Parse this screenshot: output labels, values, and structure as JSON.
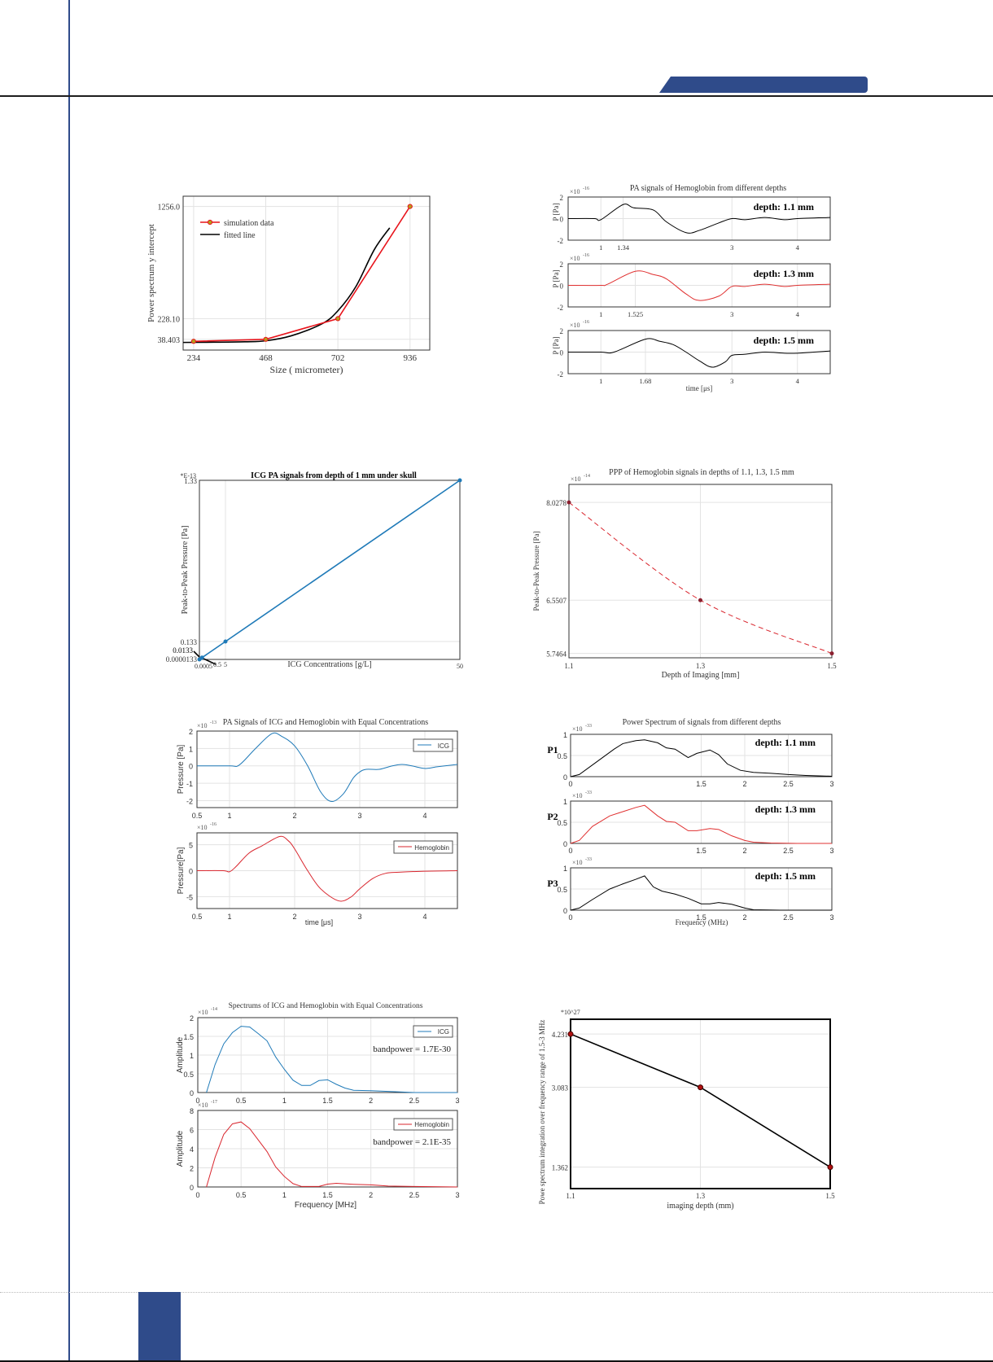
{
  "page": {
    "accent_color": "#2f4b8a",
    "rule_color": "#1e1e1e"
  },
  "chart_data": [
    {
      "id": "fig1",
      "type": "line",
      "title": "",
      "xlabel": "Size ( micrometer)",
      "ylabel": "Power spectrum y intercept",
      "x_ticks": [
        "234",
        "468",
        "702",
        "936"
      ],
      "y_ticks": [
        "38.403",
        "228.10",
        "1256.0"
      ],
      "legend": [
        "simulation data",
        "fitted line"
      ],
      "series": [
        {
          "name": "simulation data",
          "color": "#e8141c",
          "x": [
            234,
            468,
            702,
            936
          ],
          "y": [
            20,
            38.403,
            228.1,
            1256.0
          ]
        },
        {
          "name": "fitted line",
          "color": "#000000",
          "x": [
            200,
            300,
            400,
            468,
            550,
            650,
            702,
            760,
            820,
            870
          ],
          "y": [
            10,
            12,
            16,
            25,
            70,
            180,
            300,
            520,
            860,
            1060
          ]
        }
      ],
      "xlim": [
        200,
        1000
      ],
      "ylim": [
        -60,
        1350
      ]
    },
    {
      "id": "fig2",
      "type": "line",
      "title": "PA signals of Hemoglobin from different depths",
      "xlabel": "time [μs]",
      "ylabel": "P [Pa]",
      "y_exponent": "×10",
      "y_exponent_power": "-16",
      "panels": [
        {
          "label": "depth: 1.1 mm",
          "color": "#000000",
          "x_ticks": [
            "1",
            "1.34",
            "3",
            "4"
          ],
          "y_ticks": [
            "2",
            "0",
            "-2"
          ],
          "x": [
            0.5,
            0.9,
            1.0,
            1.34,
            1.5,
            1.8,
            2.0,
            2.3,
            2.5,
            2.8,
            3.0,
            3.2,
            3.5,
            3.8,
            4.0,
            4.5
          ],
          "y": [
            0,
            0,
            -0.1,
            1.3,
            1.0,
            0.8,
            -0.3,
            -1.3,
            -1.1,
            -0.4,
            0,
            -0.1,
            0.1,
            -0.1,
            0,
            0.1
          ]
        },
        {
          "label": "depth: 1.3 mm",
          "color": "#e03030",
          "x_ticks": [
            "1",
            "1.525",
            "3",
            "4"
          ],
          "y_ticks": [
            "2",
            "0",
            "-2"
          ],
          "x": [
            0.5,
            1.0,
            1.1,
            1.525,
            1.8,
            2.0,
            2.3,
            2.5,
            2.8,
            3.0,
            3.2,
            3.5,
            3.8,
            4.0,
            4.5
          ],
          "y": [
            0,
            0,
            0.1,
            1.3,
            1.0,
            0.6,
            -0.8,
            -1.4,
            -1.0,
            -0.1,
            -0.1,
            0.1,
            -0.1,
            0,
            0.1
          ]
        },
        {
          "label": "depth: 1.5 mm",
          "color": "#000000",
          "x_ticks": [
            "1",
            "1.68",
            "3",
            "4"
          ],
          "y_ticks": [
            "2",
            "0",
            "-2"
          ],
          "x": [
            0.5,
            1.0,
            1.2,
            1.68,
            1.9,
            2.1,
            2.3,
            2.5,
            2.7,
            2.9,
            3.0,
            3.2,
            3.5,
            3.8,
            4.0,
            4.5
          ],
          "y": [
            0,
            0,
            0,
            1.2,
            1.0,
            0.7,
            0,
            -0.8,
            -1.4,
            -0.9,
            -0.3,
            -0.2,
            0,
            -0.1,
            -0.1,
            0.1
          ]
        }
      ],
      "xlim": [
        0.5,
        4.5
      ],
      "ylim": [
        -2,
        2
      ]
    },
    {
      "id": "fig3",
      "type": "line",
      "title": "ICG PA signals from depth of 1 mm under skull",
      "xlabel": "ICG Concentrations [g/L]",
      "ylabel": "Peak-to-Peak Pressure [Pa]",
      "y_exponent": "*E-13",
      "x_ticks": [
        "0.0005",
        "0.5",
        "5",
        "50"
      ],
      "y_ticks": [
        "0.0000133",
        "0.0133",
        "0.133",
        "1.33"
      ],
      "annotations": [
        "0.0133",
        "0.5"
      ],
      "series": [
        {
          "name": "ICG",
          "color": "#1f7ab8",
          "x": [
            0.0005,
            0.5,
            5,
            50
          ],
          "y": [
            1.33e-05,
            0.0133,
            0.133,
            1.33
          ]
        }
      ],
      "xlim": [
        0,
        50
      ],
      "ylim": [
        0,
        1.33
      ]
    },
    {
      "id": "fig4",
      "type": "line",
      "title": "PPP of Hemoglobin signals in depths of 1.1, 1.3, 1.5 mm",
      "xlabel": "Depth of Imaging [mm]",
      "ylabel": "Peak-to-Peak Pressure [Pa]",
      "y_exponent": "×10",
      "y_exponent_power": "-14",
      "x_ticks": [
        "1.1",
        "1.3",
        "1.5"
      ],
      "y_ticks": [
        "5.7464",
        "6.5507",
        "8.0278"
      ],
      "series": [
        {
          "name": "Hemoglobin",
          "color": "#d9262e",
          "dashed": true,
          "x": [
            1.1,
            1.3,
            1.5
          ],
          "y": [
            8.0278,
            6.5507,
            5.7464
          ]
        }
      ],
      "xlim": [
        1.1,
        1.5
      ],
      "ylim": [
        5.68,
        8.3
      ]
    },
    {
      "id": "fig5",
      "type": "line",
      "title": "PA Signals of ICG and Hemoglobin with Equal Concentrations",
      "xlabel": "time [μs]",
      "panels": [
        {
          "ylabel": "Pressure [Pa]",
          "exp": "-13",
          "legend": "ICG",
          "color": "#1f7ab8",
          "y_ticks": [
            "2",
            "1",
            "0",
            "-1",
            "-2"
          ],
          "ylim": [
            -2.4,
            2
          ],
          "x": [
            0.5,
            1.0,
            1.15,
            1.4,
            1.65,
            1.8,
            2.0,
            2.2,
            2.4,
            2.57,
            2.75,
            2.9,
            3.0,
            3.1,
            3.3,
            3.5,
            3.65,
            3.8,
            4.0,
            4.2,
            4.5
          ],
          "y": [
            0,
            0,
            0.05,
            1.0,
            1.85,
            1.7,
            1.15,
            0,
            -1.5,
            -2.05,
            -1.6,
            -0.7,
            -0.35,
            -0.2,
            -0.2,
            0,
            0.08,
            0,
            -0.15,
            -0.05,
            0.08
          ]
        },
        {
          "ylabel": "Pressure[Pa]",
          "exp": "-16",
          "legend": "Hemoglobin",
          "color": "#d9262e",
          "y_ticks": [
            "5",
            "0",
            "-5"
          ],
          "ylim": [
            -7.3,
            7.3
          ],
          "x": [
            0.5,
            0.9,
            1.0,
            1.1,
            1.3,
            1.5,
            1.77,
            1.9,
            2.0,
            2.2,
            2.4,
            2.67,
            2.85,
            3.0,
            3.2,
            3.4,
            3.6,
            4.0,
            4.5
          ],
          "y": [
            0,
            0,
            -0.2,
            0.8,
            3.4,
            4.8,
            6.6,
            5.8,
            4.2,
            0,
            -3.5,
            -5.8,
            -5.2,
            -3.5,
            -1.5,
            -0.5,
            -0.3,
            -0.1,
            0
          ]
        }
      ],
      "x_ticks": [
        "0.5",
        "1",
        "2",
        "3",
        "4"
      ],
      "xlim": [
        0.5,
        4.5
      ]
    },
    {
      "id": "fig6",
      "type": "line",
      "title": "Power Spectrum of signals from different depths",
      "xlabel": "Frequency (MHz)",
      "y_exponent": "×10",
      "y_exponent_power": "-33",
      "x_ticks": [
        "0",
        "1.5",
        "2",
        "2.5",
        "3"
      ],
      "y_ticks": [
        "1",
        "0.5",
        "0"
      ],
      "panels": [
        {
          "ylabel": "P1",
          "label": "depth: 1.1 mm",
          "color": "#000000",
          "x": [
            0,
            0.1,
            0.3,
            0.5,
            0.6,
            0.75,
            0.85,
            1.0,
            1.1,
            1.2,
            1.35,
            1.45,
            1.6,
            1.7,
            1.8,
            1.95,
            2.1,
            2.3,
            2.5,
            2.7,
            3.0
          ],
          "y": [
            0,
            0.05,
            0.35,
            0.65,
            0.78,
            0.85,
            0.87,
            0.8,
            0.68,
            0.65,
            0.45,
            0.55,
            0.63,
            0.52,
            0.3,
            0.15,
            0.1,
            0.08,
            0.05,
            0.03,
            0.01
          ]
        },
        {
          "ylabel": "P2",
          "label": "depth: 1.3 mm",
          "color": "#e03030",
          "x": [
            0,
            0.1,
            0.25,
            0.45,
            0.6,
            0.75,
            0.85,
            1.0,
            1.1,
            1.2,
            1.35,
            1.45,
            1.6,
            1.7,
            1.85,
            2.0,
            2.1,
            2.3,
            2.6,
            3.0
          ],
          "y": [
            0,
            0.07,
            0.4,
            0.65,
            0.75,
            0.85,
            0.9,
            0.65,
            0.52,
            0.5,
            0.3,
            0.3,
            0.35,
            0.33,
            0.18,
            0.07,
            0.03,
            0.01,
            0,
            0
          ]
        },
        {
          "ylabel": "P3",
          "label": "depth: 1.5 mm",
          "color": "#000000",
          "x": [
            0,
            0.1,
            0.25,
            0.45,
            0.6,
            0.75,
            0.85,
            0.95,
            1.05,
            1.2,
            1.35,
            1.5,
            1.6,
            1.7,
            1.85,
            2.0,
            2.1,
            2.4,
            3.0
          ],
          "y": [
            0,
            0.05,
            0.25,
            0.5,
            0.62,
            0.73,
            0.81,
            0.55,
            0.45,
            0.38,
            0.28,
            0.15,
            0.15,
            0.18,
            0.14,
            0.05,
            0.01,
            0,
            0
          ]
        }
      ],
      "xlim": [
        0,
        3
      ],
      "ylim": [
        0,
        1
      ]
    },
    {
      "id": "fig7",
      "type": "line",
      "title": "Spectrums of ICG and Hemoglobin with Equal Concentrations",
      "xlabel": "Frequency [MHz]",
      "x_ticks": [
        "0",
        "0.5",
        "1",
        "1.5",
        "2",
        "2.5",
        "3"
      ],
      "panels": [
        {
          "ylabel": "Amplitude",
          "exp": "-14",
          "legend": "ICG",
          "color": "#1f7ab8",
          "annotation": "bandpower = 1.7E-30",
          "y_ticks": [
            "2",
            "1.5",
            "1",
            "0.5",
            "0"
          ],
          "ylim": [
            0,
            2
          ],
          "x": [
            0.1,
            0.2,
            0.3,
            0.4,
            0.5,
            0.6,
            0.7,
            0.8,
            0.9,
            1.0,
            1.1,
            1.2,
            1.3,
            1.4,
            1.5,
            1.6,
            1.7,
            1.8,
            2.0,
            2.2,
            2.5,
            3.0
          ],
          "y": [
            0,
            0.75,
            1.3,
            1.6,
            1.77,
            1.75,
            1.57,
            1.38,
            0.95,
            0.62,
            0.33,
            0.19,
            0.19,
            0.32,
            0.34,
            0.22,
            0.12,
            0.06,
            0.05,
            0.03,
            0,
            0
          ]
        },
        {
          "ylabel": "Amplitude",
          "exp": "-17",
          "legend": "Hemoglobin",
          "color": "#d9262e",
          "annotation": "bandpower = 2.1E-35",
          "y_ticks": [
            "8",
            "6",
            "4",
            "2",
            "0"
          ],
          "ylim": [
            0,
            8
          ],
          "x": [
            0.1,
            0.2,
            0.3,
            0.4,
            0.5,
            0.6,
            0.7,
            0.8,
            0.9,
            1.0,
            1.1,
            1.2,
            1.4,
            1.5,
            1.6,
            1.8,
            2.0,
            2.2,
            2.5,
            3.0
          ],
          "y": [
            0,
            3.1,
            5.5,
            6.6,
            6.8,
            6.1,
            4.9,
            3.7,
            2.1,
            1.1,
            0.35,
            0.05,
            0.05,
            0.3,
            0.38,
            0.28,
            0.22,
            0.1,
            0.05,
            0
          ]
        }
      ],
      "xlim": [
        0,
        3
      ]
    },
    {
      "id": "fig8",
      "type": "line",
      "title": "",
      "xlabel": "imaging depth (mm)",
      "ylabel": "Powe spectrum integration over frequency range of 1.5-3 MHz",
      "y_exponent": "*10^27",
      "x_ticks": [
        "1.1",
        "1.3",
        "1.5"
      ],
      "y_ticks": [
        "1.362",
        "3.083",
        "4.231"
      ],
      "series": [
        {
          "name": "integration",
          "color": "#000000",
          "marker": "#b01010",
          "x": [
            1.1,
            1.3,
            1.5
          ],
          "y": [
            4.231,
            3.083,
            1.362
          ]
        }
      ],
      "xlim": [
        1.1,
        1.5
      ],
      "ylim": [
        0.9,
        4.55
      ]
    }
  ]
}
